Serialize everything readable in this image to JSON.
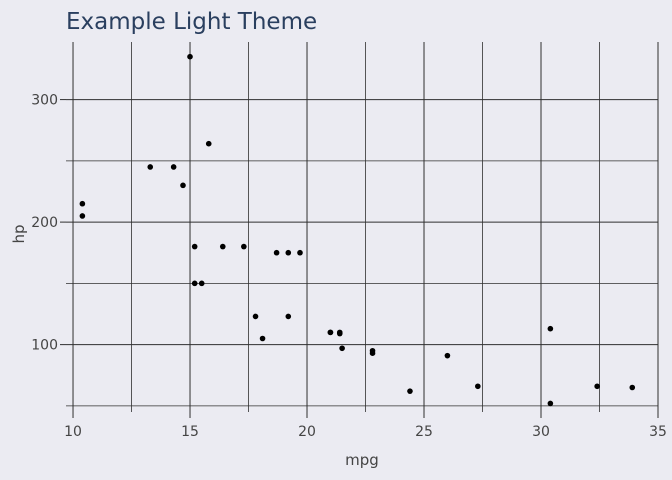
{
  "chart_data": {
    "type": "scatter",
    "title": "Example Light Theme",
    "xlabel": "mpg",
    "ylabel": "hp",
    "xlim": [
      9.7,
      35
    ],
    "ylim": [
      45,
      347
    ],
    "x_ticks": [
      10,
      15,
      20,
      25,
      30,
      35
    ],
    "x_tick_labels": [
      "10",
      "15",
      "20",
      "25",
      "30",
      "35"
    ],
    "x_minor_ticks": [
      12.5,
      17.5,
      22.5,
      27.5,
      32.5
    ],
    "y_ticks": [
      100,
      200,
      300
    ],
    "y_tick_labels": [
      "100",
      "200",
      "300"
    ],
    "y_minor_ticks": [
      50,
      150,
      250
    ],
    "grid": true,
    "colors": {
      "background": "#ebebf2",
      "grid": "#2f2f2f",
      "marker": "#000000",
      "title": "#2a3f5f",
      "text": "#444444"
    },
    "series": [
      {
        "x": [
          21.0,
          21.0,
          22.8,
          21.4,
          18.7,
          18.1,
          14.3,
          24.4,
          22.8,
          19.2,
          17.8,
          16.4,
          17.3,
          15.2,
          10.4,
          10.4,
          14.7,
          32.4,
          30.4,
          33.9,
          21.5,
          15.5,
          15.2,
          13.3,
          19.2,
          27.3,
          26.0,
          30.4,
          15.8,
          19.7,
          15.0,
          21.4
        ],
        "y": [
          110,
          110,
          93,
          110,
          175,
          105,
          245,
          62,
          95,
          123,
          123,
          180,
          180,
          180,
          205,
          215,
          230,
          66,
          52,
          65,
          97,
          150,
          150,
          245,
          175,
          66,
          91,
          113,
          264,
          175,
          335,
          109
        ]
      }
    ]
  }
}
